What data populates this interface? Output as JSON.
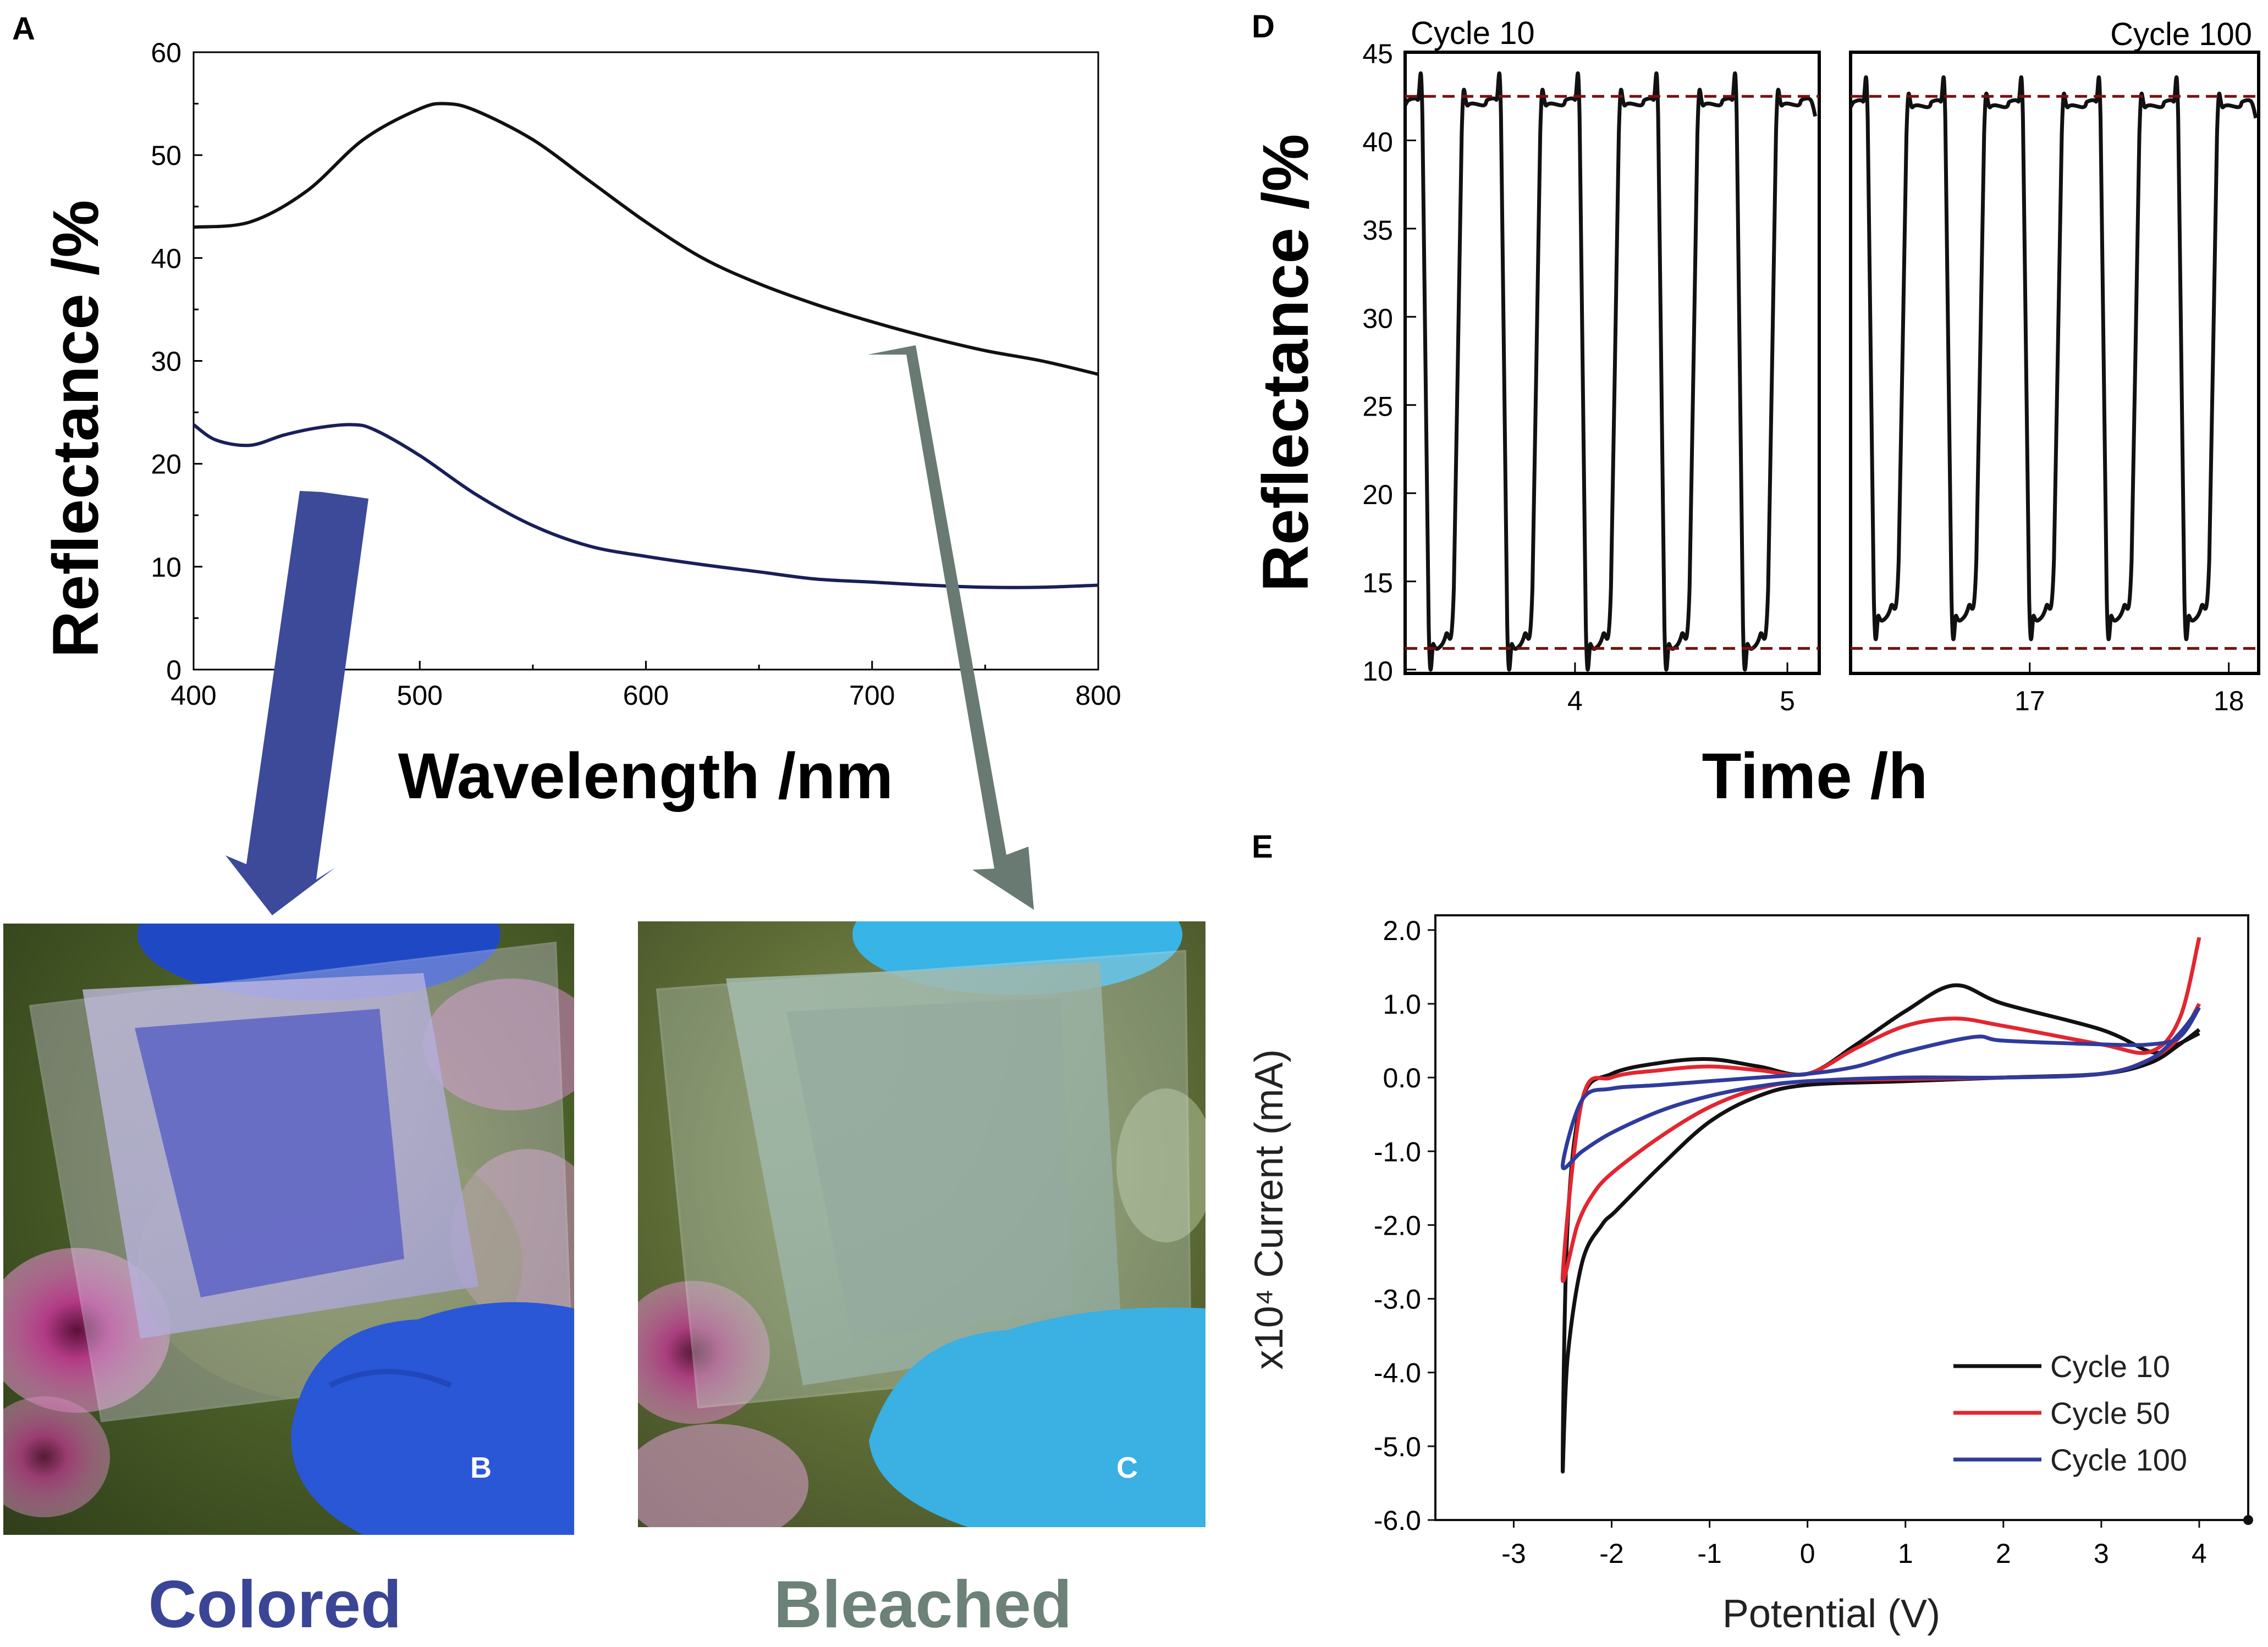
{
  "chart_data": [
    {
      "id": "A",
      "panel_label": "A",
      "type": "line",
      "xlabel": "Wavelength /nm",
      "ylabel": "Reflectance /%",
      "xlim": [
        400,
        800
      ],
      "ylim": [
        0,
        60
      ],
      "xticks": [
        400,
        500,
        600,
        700,
        800
      ],
      "yticks": [
        0,
        10,
        20,
        30,
        40,
        50,
        60
      ],
      "series": [
        {
          "name": "bleached",
          "color": "#111111",
          "x": [
            400,
            425,
            450,
            475,
            500,
            512,
            525,
            550,
            575,
            600,
            625,
            650,
            675,
            700,
            725,
            750,
            775,
            800
          ],
          "y": [
            43,
            43.5,
            46.5,
            51.5,
            54.5,
            55,
            54.3,
            51.5,
            47.5,
            43.5,
            40,
            37.5,
            35.5,
            33.8,
            32.3,
            31,
            30,
            28.7
          ]
        },
        {
          "name": "colored",
          "color": "#1a1f5a",
          "x": [
            400,
            410,
            425,
            440,
            455,
            470,
            480,
            500,
            525,
            550,
            575,
            600,
            625,
            650,
            675,
            700,
            725,
            750,
            775,
            800
          ],
          "y": [
            23.8,
            22.3,
            21.8,
            22.8,
            23.5,
            23.8,
            23.3,
            20.8,
            17,
            14,
            12,
            11,
            10.2,
            9.5,
            8.8,
            8.5,
            8.2,
            8,
            8,
            8.2
          ]
        }
      ]
    },
    {
      "id": "D",
      "panel_label": "D",
      "type": "line",
      "xlabel": "Time /h",
      "ylabel": "Reflectance /%",
      "ylim": [
        10,
        45
      ],
      "yticks": [
        10,
        15,
        20,
        25,
        30,
        35,
        40,
        45
      ],
      "reference_lines": [
        42.5,
        11.2
      ],
      "subplots": [
        {
          "label": "Cycle 10",
          "xlim": [
            3.2,
            5.15
          ],
          "xticks": [
            4,
            5
          ],
          "cycle_starts": [
            3.2,
            3.57,
            3.94,
            4.31,
            4.68,
            5.05
          ],
          "high": 42.3,
          "low": 11.2
        },
        {
          "label": "Cycle 100",
          "xlim": [
            16.1,
            18.15
          ],
          "xticks": [
            17,
            18
          ],
          "cycle_starts": [
            16.1,
            16.49,
            16.88,
            17.27,
            17.66,
            18.05
          ],
          "high": 42.2,
          "low": 12.8
        }
      ]
    },
    {
      "id": "E",
      "panel_label": "E",
      "type": "line",
      "xlabel": "Potential (V)",
      "ylabel": "x10⁴ Current (mA)",
      "xlim": [
        -3.8,
        4.5
      ],
      "ylim": [
        -6,
        2.2
      ],
      "xticks": [
        -3,
        -2,
        -1,
        0,
        1,
        2,
        3,
        4
      ],
      "yticks": [
        -6.0,
        -5.0,
        -4.0,
        -3.0,
        -2.0,
        -1.0,
        0.0,
        1.0,
        2.0
      ],
      "ytick_labels": [
        "-6.0",
        "-5.0",
        "-4.0",
        "-3.0",
        "-2.0",
        "-1.0",
        "0.0",
        "1.0",
        "2.0"
      ],
      "legend_position": "bottom-right",
      "series": [
        {
          "name": "Cycle 10",
          "color": "#111111",
          "x": [
            4,
            3.7,
            3.5,
            3.0,
            2.0,
            1.5,
            1.0,
            0.5,
            0.0,
            -0.5,
            -1.0,
            -1.5,
            -2.0,
            -2.3,
            -2.45,
            -2.5,
            -2.45,
            -2.3,
            -2.1,
            -1.95,
            -1.5,
            -1.0,
            -0.5,
            0.0,
            1.0,
            2.0,
            3.0,
            3.5,
            3.8,
            4.0
          ],
          "y": [
            0.6,
            0.4,
            0.35,
            0.65,
            1.0,
            1.25,
            0.9,
            0.45,
            0.05,
            0.15,
            0.25,
            0.2,
            0.05,
            -0.3,
            -2.0,
            -5.3,
            -3.8,
            -2.5,
            -2.0,
            -1.8,
            -1.2,
            -0.6,
            -0.25,
            -0.1,
            -0.05,
            0.0,
            0.05,
            0.2,
            0.45,
            0.65
          ]
        },
        {
          "name": "Cycle 50",
          "color": "#e22630",
          "x": [
            4,
            3.8,
            3.5,
            3.0,
            2.0,
            1.5,
            1.0,
            0.5,
            0.0,
            -0.5,
            -1.0,
            -1.5,
            -2.0,
            -2.3,
            -2.5,
            -2.35,
            -2.2,
            -2.0,
            -1.5,
            -1.0,
            -0.5,
            0.0,
            1.0,
            2.0,
            3.0,
            3.5,
            3.8,
            4.0
          ],
          "y": [
            1.9,
            0.8,
            0.35,
            0.45,
            0.7,
            0.8,
            0.7,
            0.4,
            0.05,
            0.1,
            0.15,
            0.1,
            0.0,
            -0.3,
            -2.7,
            -2.0,
            -1.6,
            -1.3,
            -0.8,
            -0.4,
            -0.15,
            -0.05,
            -0.02,
            0.0,
            0.05,
            0.25,
            0.55,
            1.0
          ]
        },
        {
          "name": "Cycle 100",
          "color": "#2f3b9c",
          "x": [
            4,
            3.8,
            3.5,
            3.0,
            2.0,
            1.7,
            1.0,
            0.5,
            0.0,
            -0.5,
            -1.0,
            -1.5,
            -2.0,
            -2.3,
            -2.5,
            -2.3,
            -2.0,
            -1.5,
            -1.0,
            -0.5,
            0.0,
            1.0,
            2.0,
            3.0,
            3.5,
            3.8,
            4.0
          ],
          "y": [
            0.95,
            0.55,
            0.45,
            0.45,
            0.5,
            0.55,
            0.35,
            0.15,
            0.05,
            0.0,
            -0.05,
            -0.1,
            -0.15,
            -0.3,
            -1.2,
            -1.0,
            -0.75,
            -0.45,
            -0.25,
            -0.12,
            -0.05,
            0.0,
            0.0,
            0.05,
            0.25,
            0.6,
            0.95
          ]
        }
      ]
    }
  ],
  "photos": [
    {
      "id": "B",
      "panel_label": "B",
      "caption": "Colored",
      "caption_color": "#3b4596",
      "arrow_color": "#3d4a99"
    },
    {
      "id": "C",
      "panel_label": "C",
      "caption": "Bleached",
      "caption_color": "#6c8177",
      "arrow_color": "#687a72"
    }
  ]
}
